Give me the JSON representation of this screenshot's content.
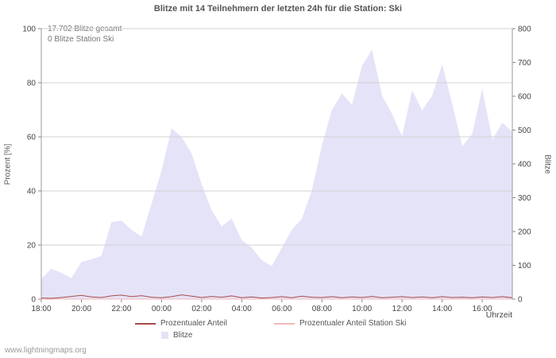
{
  "annotations": {
    "total": "17.702 Blitze gesamt",
    "station": "0 Blitze Station Ski"
  },
  "watermark": "www.lightningmaps.org",
  "chart_data": {
    "type": "area",
    "title": "Blitze mit 14 Teilnehmern der letzten 24h für die Station: Ski",
    "xlabel": "Uhrzeit",
    "ylabel_left": "Prozent  [%]",
    "ylabel_right": "Blitze",
    "ylim_left": [
      0,
      100
    ],
    "ylim_right": [
      0,
      800
    ],
    "y_ticks_left": [
      0,
      20,
      40,
      60,
      80,
      100
    ],
    "y_ticks_right": [
      0,
      100,
      200,
      300,
      400,
      500,
      600,
      700,
      800
    ],
    "x_ticks": [
      "18:00",
      "20:00",
      "22:00",
      "00:00",
      "02:00",
      "04:00",
      "06:00",
      "08:00",
      "10:00",
      "12:00",
      "14:00",
      "16:00"
    ],
    "grid": "horizontal",
    "legend_position": "bottom",
    "times": [
      "18:00",
      "18:30",
      "19:00",
      "19:30",
      "20:00",
      "20:30",
      "21:00",
      "21:30",
      "22:00",
      "22:30",
      "23:00",
      "23:30",
      "00:00",
      "00:30",
      "01:00",
      "01:30",
      "02:00",
      "02:30",
      "03:00",
      "03:30",
      "04:00",
      "04:30",
      "05:00",
      "05:30",
      "06:00",
      "06:30",
      "07:00",
      "07:30",
      "08:00",
      "08:30",
      "09:00",
      "09:30",
      "10:00",
      "10:30",
      "11:00",
      "11:30",
      "12:00",
      "12:30",
      "13:00",
      "13:30",
      "14:00",
      "14:30",
      "15:00",
      "15:30",
      "16:00",
      "16:30",
      "17:00",
      "17:30"
    ],
    "series": [
      {
        "name": "Blitze",
        "kind": "area",
        "axis": "right",
        "color": "#e5e3f8",
        "values": [
          60,
          90,
          78,
          62,
          110,
          118,
          128,
          228,
          232,
          205,
          185,
          282,
          380,
          505,
          480,
          430,
          340,
          262,
          215,
          238,
          175,
          152,
          115,
          98,
          152,
          205,
          238,
          322,
          455,
          560,
          608,
          575,
          690,
          738,
          602,
          548,
          482,
          618,
          558,
          602,
          695,
          578,
          452,
          488,
          622,
          472,
          522,
          495
        ]
      },
      {
        "name": "Prozentualer Anteil",
        "kind": "line",
        "axis": "left",
        "color": "#a94a4a",
        "values": [
          0.4,
          0.3,
          0.6,
          1.0,
          1.4,
          0.8,
          0.6,
          1.2,
          1.5,
          0.9,
          1.3,
          0.7,
          0.5,
          0.9,
          1.6,
          1.1,
          0.6,
          1.0,
          0.7,
          1.2,
          0.5,
          0.8,
          0.4,
          0.6,
          0.9,
          0.5,
          1.1,
          0.7,
          0.6,
          0.9,
          0.5,
          0.8,
          0.6,
          1.0,
          0.5,
          0.7,
          0.9,
          0.6,
          0.8,
          0.5,
          0.9,
          0.6,
          0.7,
          0.5,
          0.8,
          0.6,
          0.9,
          0.5
        ]
      },
      {
        "name": "Prozentualer Anteil Station Ski",
        "kind": "line",
        "axis": "left",
        "color": "#f4b8b8",
        "values": [
          0,
          0,
          0,
          0,
          0,
          0,
          0,
          0,
          0,
          0,
          0,
          0,
          0,
          0,
          0,
          0,
          0,
          0,
          0,
          0,
          0,
          0,
          0,
          0,
          0,
          0,
          0,
          0,
          0,
          0,
          0,
          0,
          0,
          0,
          0,
          0,
          0,
          0,
          0,
          0,
          0,
          0,
          0,
          0,
          0,
          0,
          0,
          0
        ]
      }
    ]
  }
}
